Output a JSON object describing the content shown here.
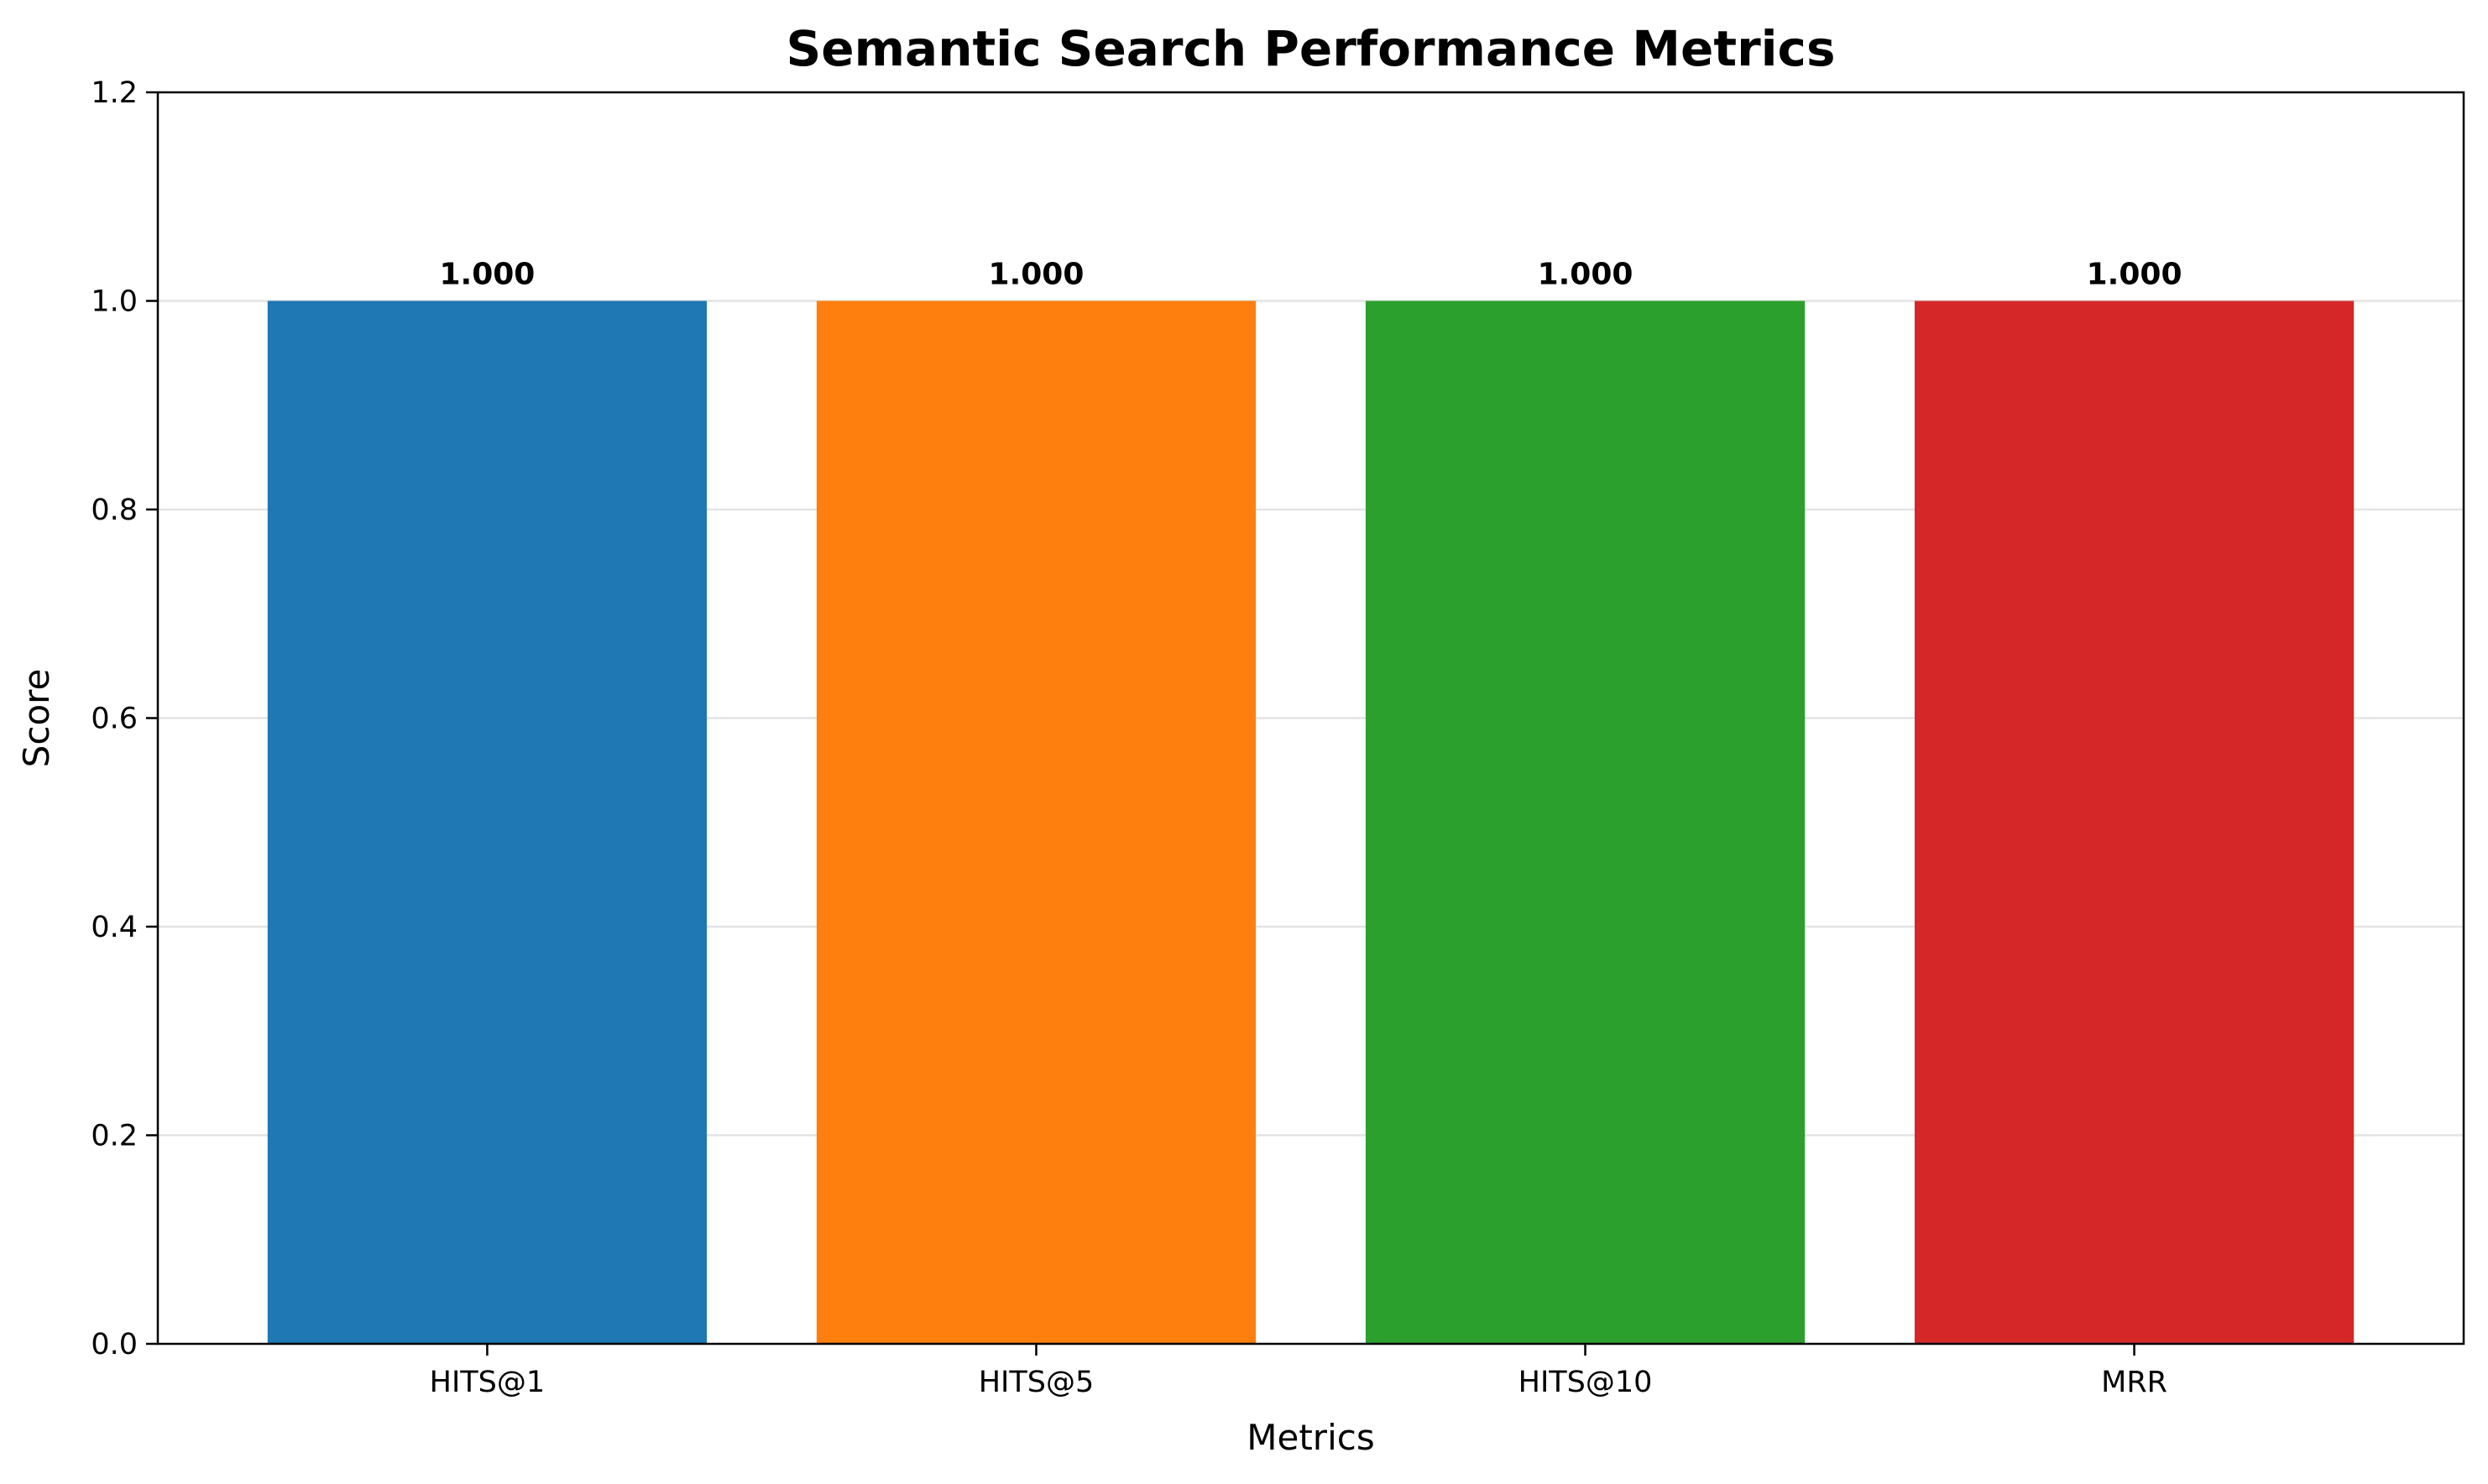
{
  "chart_data": {
    "type": "bar",
    "title": "Semantic Search Performance Metrics",
    "xlabel": "Metrics",
    "ylabel": "Score",
    "categories": [
      "HITS@1",
      "HITS@5",
      "HITS@10",
      "MRR"
    ],
    "values": [
      1.0,
      1.0,
      1.0,
      1.0
    ],
    "value_labels": [
      "1.000",
      "1.000",
      "1.000",
      "1.000"
    ],
    "colors": [
      "#1f77b4",
      "#ff7f0e",
      "#2ca02c",
      "#d62728"
    ],
    "ylim": [
      0,
      1.2
    ],
    "yticks": [
      0.0,
      0.2,
      0.4,
      0.6,
      0.8,
      1.0,
      1.2
    ],
    "ytick_labels": [
      "0.0",
      "0.2",
      "0.4",
      "0.6",
      "0.8",
      "1.0",
      "1.2"
    ],
    "grid": "horizontal",
    "legend": "none"
  }
}
